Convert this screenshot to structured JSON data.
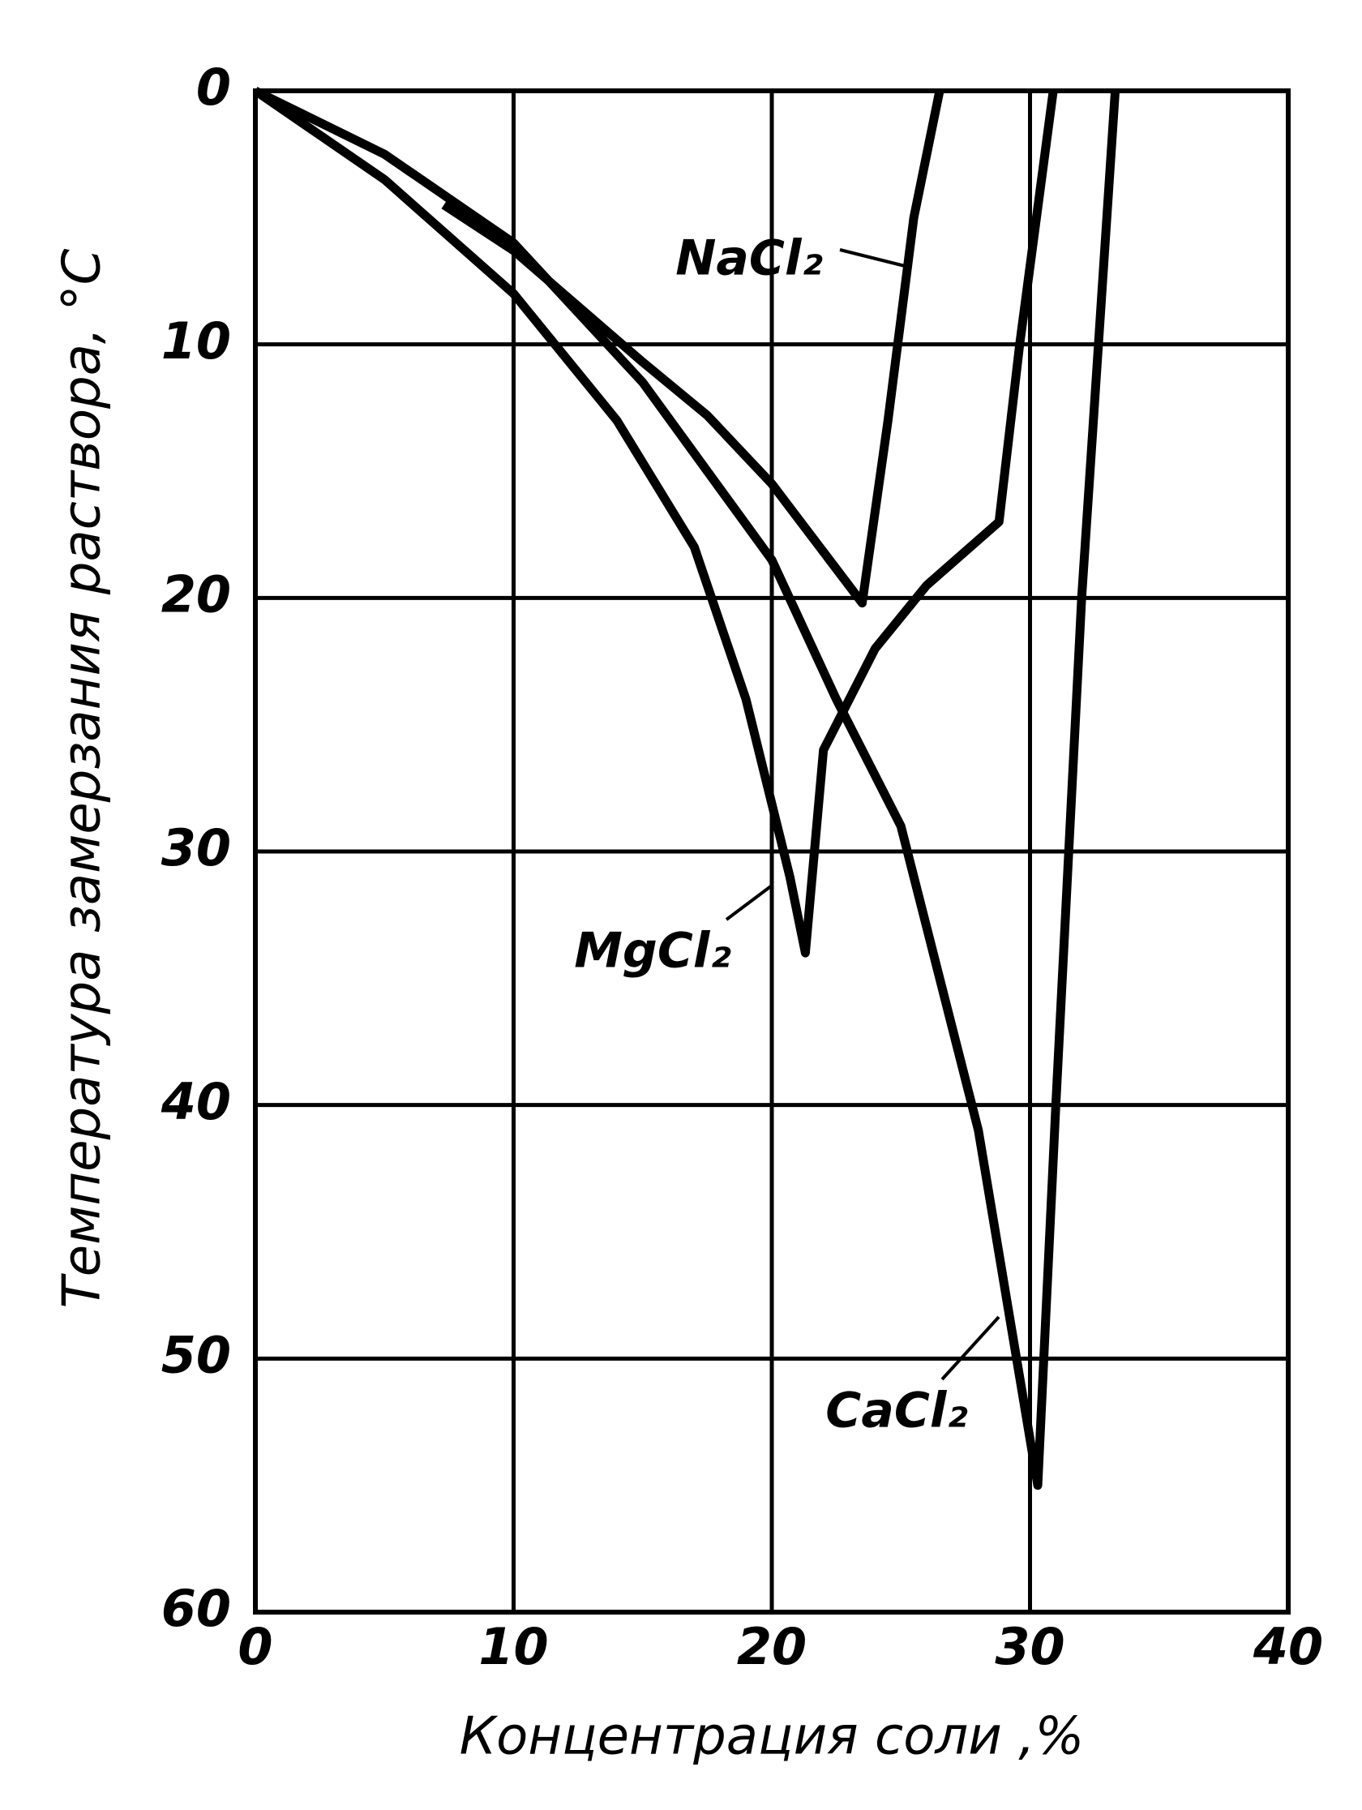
{
  "chart_data": {
    "type": "line",
    "x_label": "Концентрация соли ,%",
    "y_label": "Температура замерзания раствора, °С",
    "xlim": [
      0,
      40
    ],
    "xticks": [
      0,
      10,
      20,
      30,
      40
    ],
    "ylim": [
      0,
      60
    ],
    "yticks": [
      0,
      10,
      20,
      30,
      40,
      50,
      60
    ],
    "y_inverted": true,
    "grid": true,
    "series": [
      {
        "name": "NaCl₂",
        "color": "#000000",
        "x": [
          7.3,
          10,
          12.5,
          15,
          17.5,
          20,
          23.5,
          24.5,
          25.5,
          26.5
        ],
        "values": [
          4.5,
          6.3,
          8.5,
          10.7,
          12.8,
          15.5,
          20.2,
          13,
          5,
          0
        ]
      },
      {
        "name": "MgCl₂",
        "color": "#000000",
        "x": [
          0,
          5,
          10,
          14,
          17,
          19,
          20.7,
          21.3,
          22,
          24,
          26,
          28.8,
          29.6,
          30.9
        ],
        "values": [
          0,
          3.5,
          8,
          13,
          18,
          24,
          31,
          34,
          26,
          22,
          19.5,
          17,
          10,
          0
        ]
      },
      {
        "name": "CaCl₂",
        "color": "#000000",
        "x": [
          0,
          5,
          10,
          15,
          20,
          22.5,
          25,
          28,
          30.3,
          31,
          32,
          33.3
        ],
        "values": [
          0,
          2.5,
          6,
          11.5,
          18.5,
          24,
          29,
          41,
          55,
          40,
          20,
          0
        ]
      }
    ]
  }
}
